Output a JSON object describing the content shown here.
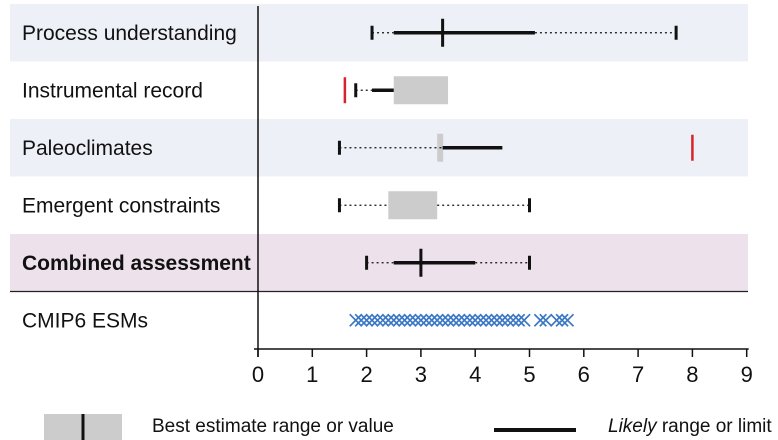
{
  "chart_data": {
    "type": "range_plot",
    "xlim": [
      0,
      9
    ],
    "x_ticks": [
      "0",
      "1",
      "2",
      "3",
      "4",
      "5",
      "6",
      "7",
      "8",
      "9"
    ],
    "colors": {
      "band": "#eef0f8",
      "combined_band": "#ede1ec",
      "best_estimate_box": "#cccccc",
      "line": "#111111",
      "red_marker": "#d8232a",
      "cmip6_marker": "#3b78c4"
    },
    "rows": [
      {
        "label": "Process understanding",
        "bold": false,
        "very_likely": [
          2.1,
          7.7
        ],
        "likely": [
          2.5,
          5.1
        ],
        "best_estimate": 3.4,
        "best_estimate_range": null,
        "red_marks": []
      },
      {
        "label": "Instrumental record",
        "bold": false,
        "very_likely": [
          1.8,
          null
        ],
        "likely": [
          2.1,
          2.5
        ],
        "best_estimate": null,
        "best_estimate_range": [
          2.5,
          3.5
        ],
        "red_marks": [
          1.6
        ]
      },
      {
        "label": "Paleoclimates",
        "bold": false,
        "very_likely": [
          1.5,
          null
        ],
        "likely": [
          3.4,
          4.5
        ],
        "best_estimate": null,
        "best_estimate_range": [
          3.3,
          3.4
        ],
        "red_marks": [
          8.0
        ]
      },
      {
        "label": "Emergent constraints",
        "bold": false,
        "very_likely": [
          1.5,
          5.0
        ],
        "likely": null,
        "best_estimate": null,
        "best_estimate_range": [
          2.4,
          3.3
        ],
        "red_marks": []
      },
      {
        "label": "Combined assessment",
        "bold": true,
        "very_likely": [
          2.0,
          5.0
        ],
        "likely": [
          2.5,
          4.0
        ],
        "best_estimate": 3.0,
        "best_estimate_range": null,
        "red_marks": []
      }
    ],
    "cmip6": {
      "label": "CMIP6 ESMs",
      "values": [
        1.8,
        1.9,
        2.0,
        2.1,
        2.2,
        2.3,
        2.4,
        2.5,
        2.6,
        2.7,
        2.8,
        2.9,
        3.0,
        3.1,
        3.2,
        3.3,
        3.4,
        3.5,
        3.6,
        3.7,
        3.8,
        3.9,
        4.0,
        4.1,
        4.2,
        4.3,
        4.4,
        4.5,
        4.6,
        4.7,
        4.8,
        4.9,
        5.2,
        5.3,
        5.5,
        5.6,
        5.7
      ]
    },
    "legend": {
      "best_estimate": "Best estimate range or value",
      "likely_italic": "Likely",
      "likely_rest": " range or limit"
    }
  }
}
